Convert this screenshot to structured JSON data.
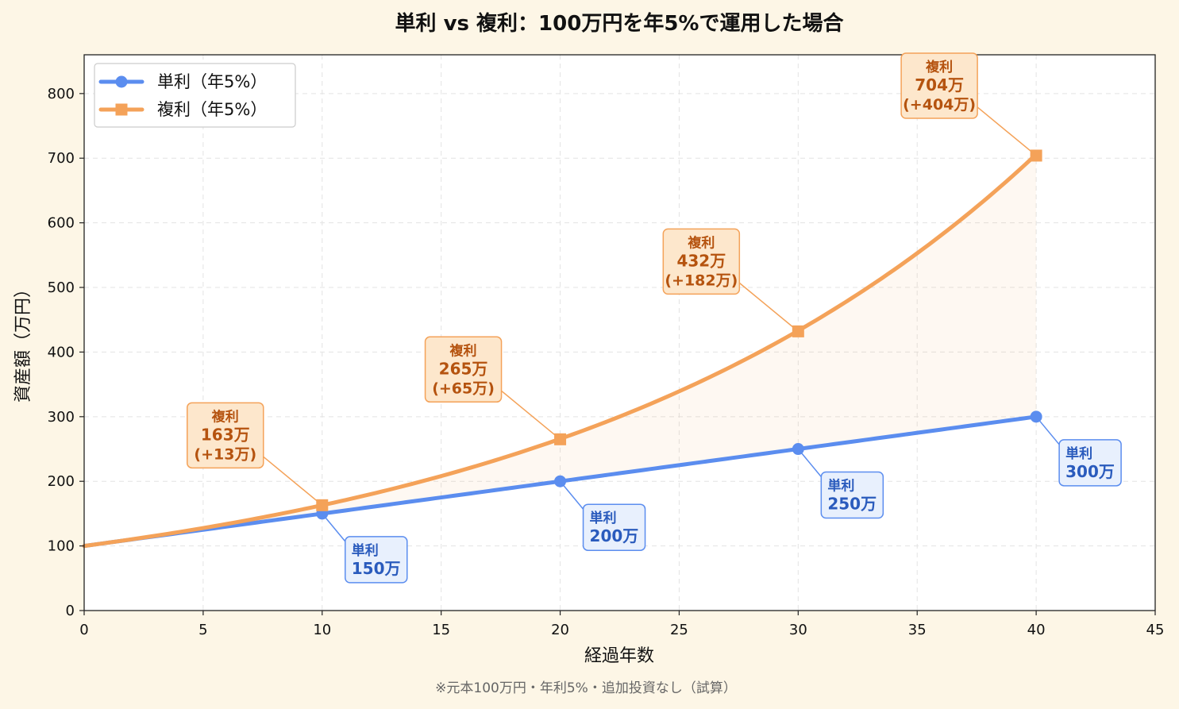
{
  "chart_data": {
    "type": "line",
    "title": "単利 vs 複利：100万円を年5%で運用した場合",
    "xlabel": "経過年数",
    "ylabel": "資産額（万円）",
    "footnote": "※元本100万円・年利5%・追加投資なし（試算）",
    "xlim": [
      0,
      45
    ],
    "ylim": [
      0,
      860
    ],
    "xticks": [
      0,
      5,
      10,
      15,
      20,
      25,
      30,
      35,
      40,
      45
    ],
    "yticks": [
      0,
      100,
      200,
      300,
      400,
      500,
      600,
      700,
      800
    ],
    "grid": true,
    "legend_position": "top-left",
    "series": [
      {
        "name": "単利（年5%）",
        "color": "#5b8def",
        "marker": "circle",
        "formula": "simple",
        "x": [
          0,
          10,
          20,
          30,
          40
        ],
        "y": [
          100,
          150,
          200,
          250,
          300
        ]
      },
      {
        "name": "複利（年5%）",
        "color": "#f4a259",
        "marker": "square",
        "formula": "compound",
        "x": [
          0,
          10,
          20,
          30,
          40
        ],
        "y": [
          100,
          163,
          265,
          432,
          704
        ]
      }
    ],
    "annotations": [
      {
        "series": 0,
        "x": 10,
        "y": 150,
        "label": "単利",
        "value": "150万"
      },
      {
        "series": 0,
        "x": 20,
        "y": 200,
        "label": "単利",
        "value": "200万"
      },
      {
        "series": 0,
        "x": 30,
        "y": 250,
        "label": "単利",
        "value": "250万"
      },
      {
        "series": 0,
        "x": 40,
        "y": 300,
        "label": "単利",
        "value": "300万"
      },
      {
        "series": 1,
        "x": 10,
        "y": 163,
        "label": "複利",
        "value": "163万",
        "diff": "(+13万)"
      },
      {
        "series": 1,
        "x": 20,
        "y": 265,
        "label": "複利",
        "value": "265万",
        "diff": "(+65万)"
      },
      {
        "series": 1,
        "x": 30,
        "y": 432,
        "label": "複利",
        "value": "432万",
        "diff": "(+182万)"
      },
      {
        "series": 1,
        "x": 40,
        "y": 704,
        "label": "複利",
        "value": "704万",
        "diff": "(+404万)"
      }
    ]
  }
}
